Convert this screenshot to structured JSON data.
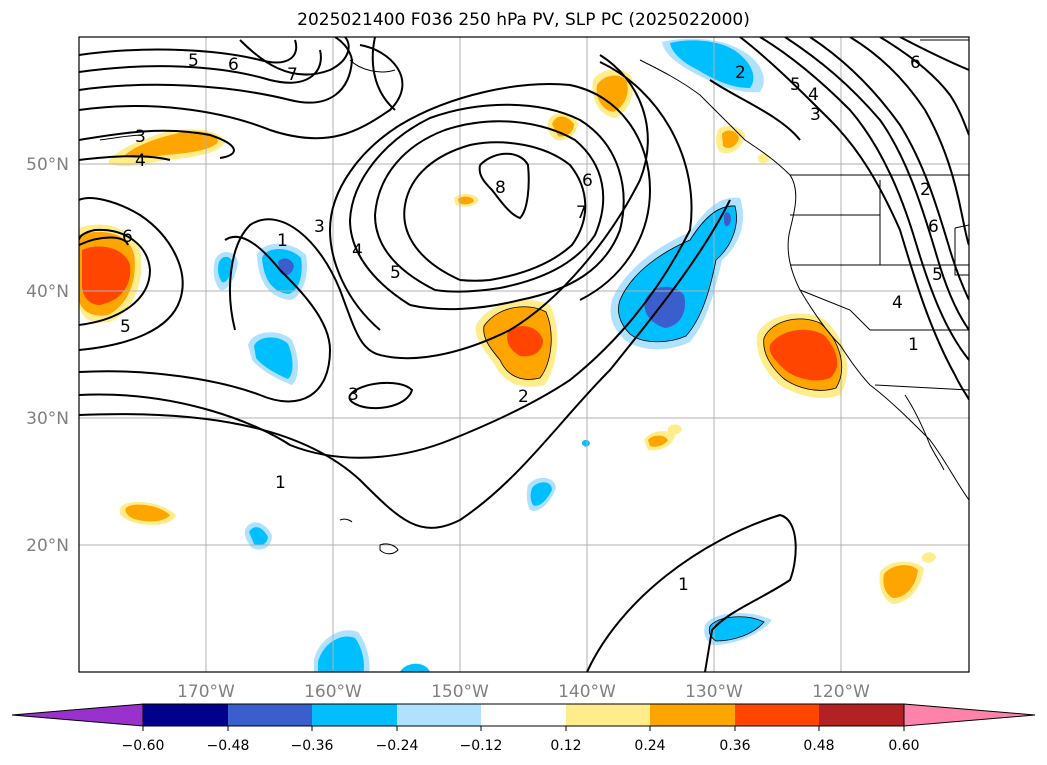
{
  "title": "2025021400 F036 250 hPa PV, SLP PC (2025022000)",
  "map": {
    "lon_ticks": [
      "170°W",
      "160°W",
      "150°W",
      "140°W",
      "130°W",
      "120°W"
    ],
    "lat_ticks": [
      "50°N",
      "40°N",
      "30°N",
      "20°N"
    ],
    "lon_range": [
      -180,
      -110
    ],
    "lat_range": [
      10,
      60
    ],
    "grid": true,
    "coastline_color": "#000000"
  },
  "contour_labels": [
    "5",
    "6",
    "7",
    "3",
    "4",
    "6",
    "5",
    "1",
    "3",
    "4",
    "5",
    "8",
    "6",
    "7",
    "2",
    "3",
    "2",
    "1",
    "1",
    "6",
    "5",
    "4",
    "3",
    "2",
    "6",
    "5",
    "4",
    "1"
  ],
  "colorbar": {
    "tick_labels": [
      "−0.60",
      "−0.48",
      "−0.36",
      "−0.24",
      "−0.12",
      "0.12",
      "0.24",
      "0.36",
      "0.48",
      "0.60"
    ],
    "colors": [
      "#9932cc",
      "#00008b",
      "#3a5fcd",
      "#00bfff",
      "#b0e2ff",
      "#ffffff",
      "#ffec8b",
      "#ffa500",
      "#ff4500",
      "#b22222",
      "#ff82ab"
    ]
  }
}
